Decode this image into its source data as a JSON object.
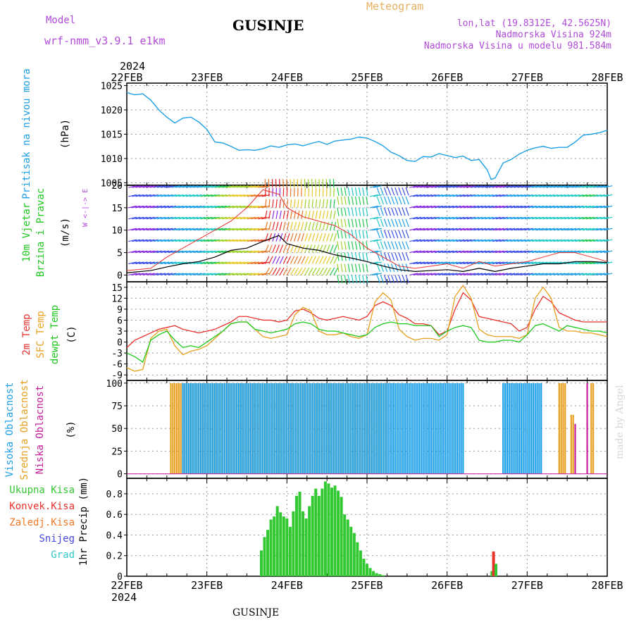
{
  "header": {
    "model_label": "Model",
    "model_name": "wrf-nmm_v3.9.1  e1km",
    "station_title": "GUSINJE",
    "meteogram_label": "Meteogram",
    "lonlat": "lon,lat (19.8312E, 42.5625N)",
    "elevation": "Nadmorska Visina 924m",
    "model_elevation": "Nadmorska Visina u modelu 981.584m",
    "year_top": "2024",
    "year_bottom": "2024",
    "footer_station": "GUSINJE",
    "credit": "made by Angel"
  },
  "colors": {
    "pressure": "#1ea0e6",
    "temp2m": "#e8322c",
    "sfctemp": "#e8a020",
    "dewpt": "#1ec81e",
    "cloud_high": "#1ea0e6",
    "cloud_mid": "#e8a020",
    "cloud_low": "#c81e9a",
    "precip_total": "#32c832",
    "precip_conv": "#e8322c",
    "precip_frz": "#f07828",
    "precip_snow": "#4646dc",
    "precip_hail": "#32c8c8",
    "label_purple": "#b04ad8"
  },
  "chart_data": [
    {
      "type": "line",
      "panel": "pressure",
      "ylabel": "Pritisak na nivou mora",
      "unit": "(hPa)",
      "x_ticks": [
        "22FEB",
        "23FEB",
        "24FEB",
        "25FEB",
        "26FEB",
        "27FEB",
        "28FEB"
      ],
      "ylim": [
        1004.5,
        1025.5
      ],
      "yticks": [
        1005,
        1010,
        1015,
        1020,
        1025
      ],
      "grid": true,
      "series": [
        {
          "color_key": "pressure",
          "x": [
            0,
            0.05,
            0.1,
            0.2,
            0.3,
            0.4,
            0.5,
            0.6,
            0.7,
            0.8,
            0.9,
            1.0,
            1.1,
            1.2,
            1.3,
            1.4,
            1.5,
            1.6,
            1.7,
            1.8,
            1.9,
            2.0,
            2.1,
            2.2,
            2.3,
            2.4,
            2.5,
            2.6,
            2.7,
            2.8,
            2.9,
            3.0,
            3.1,
            3.2,
            3.3,
            3.4,
            3.5,
            3.6,
            3.7,
            3.8,
            3.9,
            4.0,
            4.1,
            4.2,
            4.3,
            4.4,
            4.5,
            4.55,
            4.6,
            4.7,
            4.8,
            4.9,
            5.0,
            5.1,
            5.2,
            5.3,
            5.4,
            5.5,
            5.6,
            5.7,
            5.8,
            5.9,
            6.0
          ],
          "values": [
            1023.6,
            1023.3,
            1023.1,
            1023.3,
            1022.0,
            1020.0,
            1018.5,
            1017.3,
            1018.3,
            1018.5,
            1017.5,
            1016.0,
            1013.4,
            1013.2,
            1012.5,
            1011.7,
            1011.8,
            1011.7,
            1012.0,
            1012.6,
            1012.3,
            1012.8,
            1013.0,
            1012.6,
            1013.1,
            1013.5,
            1012.9,
            1013.6,
            1013.8,
            1014.0,
            1014.4,
            1014.2,
            1013.5,
            1012.6,
            1011.3,
            1010.6,
            1009.6,
            1009.4,
            1010.4,
            1010.3,
            1011.0,
            1010.6,
            1010.2,
            1010.5,
            1009.6,
            1009.8,
            1007.7,
            1005.7,
            1006.0,
            1009.1,
            1009.8,
            1010.9,
            1011.7,
            1012.2,
            1012.5,
            1012.1,
            1012.3,
            1012.3,
            1013.4,
            1014.8,
            1015.0,
            1015.3,
            1015.8
          ]
        }
      ]
    },
    {
      "type": "line",
      "panel": "wind",
      "ylabel": "10m Vjetar Brzina i Pravac",
      "unit": "(m/s)",
      "legend_glyph": "W <-|-> E  S<-|->N",
      "ylim": [
        -1.5,
        20
      ],
      "yticks": [
        0,
        5,
        10,
        15,
        20
      ],
      "grid": true,
      "series": [
        {
          "name": "speed",
          "x": [
            0,
            0.3,
            0.5,
            0.7,
            0.9,
            1.1,
            1.3,
            1.5,
            1.7,
            1.9,
            2.0,
            2.2,
            2.4,
            2.6,
            2.8,
            3.0,
            3.2,
            3.4,
            3.6,
            3.8,
            4.0,
            4.2,
            4.4,
            4.6,
            4.8,
            5.0,
            5.2,
            5.4,
            5.6,
            5.8,
            6.0
          ],
          "values": [
            0.5,
            1.0,
            1.8,
            2.5,
            3.0,
            4.0,
            5.5,
            6.0,
            7.5,
            8.8,
            7.0,
            6.0,
            5.5,
            4.5,
            3.8,
            3.0,
            2.0,
            1.2,
            0.8,
            1.0,
            1.2,
            0.8,
            1.5,
            0.8,
            1.5,
            2.0,
            2.5,
            2.5,
            3.0,
            3.0,
            2.8
          ]
        },
        {
          "name": "gust",
          "x": [
            0,
            0.3,
            0.5,
            0.7,
            0.9,
            1.1,
            1.3,
            1.5,
            1.7,
            1.9,
            2.0,
            2.2,
            2.4,
            2.6,
            2.8,
            3.0,
            3.2,
            3.4,
            3.6,
            3.8,
            4.0,
            4.2,
            4.4,
            4.6,
            4.8,
            5.0,
            5.2,
            5.4,
            5.6,
            5.8,
            6.0
          ],
          "values": [
            1,
            1.5,
            4,
            6,
            8,
            10,
            12,
            15,
            19,
            18,
            15,
            13,
            12,
            11,
            9,
            6,
            4,
            2,
            1.5,
            2,
            2.5,
            1.5,
            3,
            2,
            2.5,
            3,
            4,
            5,
            5,
            4,
            3
          ]
        }
      ]
    },
    {
      "type": "line",
      "panel": "temperature",
      "ylabel": [
        "2m Temp",
        "SFC Temp",
        "dewpt Temp"
      ],
      "unit": "(C)",
      "ylim": [
        -10.5,
        16.5
      ],
      "yticks": [
        -9,
        -6,
        -3,
        0,
        3,
        6,
        9,
        12,
        15
      ],
      "grid": true,
      "series": [
        {
          "color_key": "temp2m",
          "x": [
            0,
            0.1,
            0.2,
            0.3,
            0.4,
            0.5,
            0.6,
            0.7,
            0.8,
            0.9,
            1.0,
            1.1,
            1.2,
            1.3,
            1.4,
            1.5,
            1.6,
            1.7,
            1.8,
            1.9,
            2.0,
            2.1,
            2.2,
            2.3,
            2.4,
            2.5,
            2.6,
            2.7,
            2.8,
            2.9,
            3.0,
            3.1,
            3.2,
            3.3,
            3.4,
            3.5,
            3.6,
            3.7,
            3.8,
            3.9,
            4.0,
            4.1,
            4.2,
            4.3,
            4.4,
            4.5,
            4.6,
            4.7,
            4.8,
            4.9,
            5.0,
            5.1,
            5.2,
            5.3,
            5.4,
            5.5,
            5.6,
            5.7,
            5.8,
            5.9,
            6.0
          ],
          "values": [
            -1.5,
            0.5,
            1.5,
            2.5,
            3.5,
            4.0,
            4.5,
            3.5,
            3.0,
            2.5,
            3.0,
            3.5,
            4.5,
            5.5,
            7.0,
            7.0,
            6.5,
            6.0,
            6.0,
            5.5,
            6.0,
            8.5,
            9.0,
            8.0,
            6.5,
            6.0,
            6.5,
            7.0,
            6.5,
            6.0,
            7.0,
            10.0,
            11.0,
            10.0,
            7.5,
            6.5,
            5.0,
            5.0,
            4.5,
            2.0,
            3.0,
            9.0,
            13.5,
            11.5,
            7.0,
            6.5,
            6.0,
            5.5,
            5.0,
            3.0,
            4.0,
            9.0,
            12.5,
            11.0,
            8.0,
            7.0,
            6.0,
            5.5,
            5.5,
            5.5,
            5.5
          ]
        },
        {
          "color_key": "sfctemp",
          "x": [
            0,
            0.1,
            0.2,
            0.3,
            0.4,
            0.5,
            0.6,
            0.7,
            0.8,
            0.9,
            1.0,
            1.1,
            1.2,
            1.3,
            1.4,
            1.5,
            1.6,
            1.7,
            1.8,
            1.9,
            2.0,
            2.1,
            2.2,
            2.3,
            2.4,
            2.5,
            2.6,
            2.7,
            2.8,
            2.9,
            3.0,
            3.1,
            3.2,
            3.3,
            3.4,
            3.5,
            3.6,
            3.7,
            3.8,
            3.9,
            4.0,
            4.1,
            4.2,
            4.3,
            4.4,
            4.5,
            4.6,
            4.7,
            4.8,
            4.9,
            5.0,
            5.1,
            5.2,
            5.3,
            5.4,
            5.5,
            5.6,
            5.7,
            5.8,
            5.9,
            6.0
          ],
          "values": [
            -7.0,
            -8.0,
            -7.5,
            1.0,
            3.0,
            3.5,
            -1.0,
            -3.5,
            -2.5,
            -2.0,
            -1.0,
            1.0,
            3.0,
            5.0,
            5.5,
            5.5,
            3.5,
            1.5,
            1.0,
            1.5,
            2.0,
            7.5,
            9.5,
            8.5,
            3.0,
            2.0,
            2.0,
            2.5,
            1.5,
            1.0,
            2.0,
            11.0,
            13.5,
            11.5,
            3.5,
            1.5,
            0.5,
            1.0,
            1.0,
            0.5,
            2.0,
            12.5,
            15.5,
            12.0,
            3.5,
            2.0,
            1.5,
            1.5,
            1.5,
            1.0,
            2.0,
            12.0,
            15.0,
            12.0,
            4.0,
            3.0,
            3.0,
            2.5,
            2.5,
            2.0,
            1.5
          ]
        },
        {
          "color_key": "dewpt",
          "x": [
            0,
            0.1,
            0.2,
            0.3,
            0.4,
            0.5,
            0.6,
            0.7,
            0.8,
            0.9,
            1.0,
            1.1,
            1.2,
            1.3,
            1.4,
            1.5,
            1.6,
            1.7,
            1.8,
            1.9,
            2.0,
            2.1,
            2.2,
            2.3,
            2.4,
            2.5,
            2.6,
            2.7,
            2.8,
            2.9,
            3.0,
            3.1,
            3.2,
            3.3,
            3.4,
            3.5,
            3.6,
            3.7,
            3.8,
            3.9,
            4.0,
            4.1,
            4.2,
            4.3,
            4.4,
            4.5,
            4.6,
            4.7,
            4.8,
            4.9,
            5.0,
            5.1,
            5.2,
            5.3,
            5.4,
            5.5,
            5.6,
            5.7,
            5.8,
            5.9,
            6.0
          ],
          "values": [
            -3.0,
            -4.0,
            -5.5,
            0.5,
            2.0,
            3.0,
            0.5,
            -1.5,
            -1.0,
            -1.5,
            0.0,
            1.5,
            3.0,
            5.0,
            5.5,
            5.5,
            3.5,
            3.0,
            2.5,
            3.0,
            3.5,
            5.0,
            5.5,
            5.0,
            3.5,
            3.0,
            3.0,
            2.5,
            2.0,
            1.5,
            2.0,
            4.0,
            5.0,
            5.5,
            5.0,
            5.0,
            4.5,
            4.5,
            4.5,
            1.5,
            3.0,
            4.0,
            4.5,
            4.0,
            0.5,
            0.0,
            0.0,
            0.5,
            0.5,
            0.0,
            2.0,
            4.5,
            5.0,
            4.0,
            3.0,
            4.5,
            4.0,
            3.5,
            3.0,
            3.0,
            2.5
          ]
        }
      ]
    },
    {
      "type": "bar",
      "panel": "cloud",
      "ylabel": [
        "Visoka Oblacnost",
        "Srednja Oblacnost",
        "Niska Oblacnost"
      ],
      "unit": "(%)",
      "ylim": [
        -5,
        103
      ],
      "yticks": [
        0,
        25,
        50,
        75,
        100
      ],
      "grid": true,
      "segments": [
        {
          "color_key": "cloud_mid",
          "x_from": 0.55,
          "x_to": 3.25,
          "value": 100
        },
        {
          "color_key": "cloud_high",
          "x_from": 0.7,
          "x_to": 4.2,
          "value": 100
        },
        {
          "color_key": "cloud_high",
          "x_from": 4.7,
          "x_to": 5.2,
          "value": 100
        },
        {
          "color_key": "cloud_mid",
          "x_from": 5.4,
          "x_to": 5.5,
          "value": 100
        },
        {
          "color_key": "cloud_mid",
          "x_from": 5.55,
          "x_to": 5.58,
          "value": 65
        },
        {
          "color_key": "cloud_low",
          "x_from": 5.6,
          "x_to": 5.62,
          "value": 55
        },
        {
          "color_key": "cloud_low",
          "x_from": 5.75,
          "x_to": 5.77,
          "value": 100
        },
        {
          "color_key": "cloud_mid",
          "x_from": 5.8,
          "x_to": 5.85,
          "value": 100
        }
      ]
    },
    {
      "type": "bar",
      "panel": "precip",
      "ylabel": "1hr Precip",
      "unit": "(mm)",
      "legend": [
        "Ukupna Kisa",
        "Konvek.Kisa",
        "Zaledj.Kisa",
        "Snijeg",
        "Grad"
      ],
      "ylim": [
        0,
        0.95
      ],
      "yticks": [
        0,
        0.2,
        0.4,
        0.6,
        0.8
      ],
      "grid": true,
      "bars": [
        {
          "x": 1.68,
          "value": 0.25
        },
        {
          "x": 1.72,
          "value": 0.38
        },
        {
          "x": 1.76,
          "value": 0.45
        },
        {
          "x": 1.8,
          "value": 0.55
        },
        {
          "x": 1.84,
          "value": 0.58
        },
        {
          "x": 1.88,
          "value": 0.68
        },
        {
          "x": 1.92,
          "value": 0.62
        },
        {
          "x": 1.96,
          "value": 0.58
        },
        {
          "x": 2.0,
          "value": 0.56
        },
        {
          "x": 2.04,
          "value": 0.48
        },
        {
          "x": 2.08,
          "value": 0.63
        },
        {
          "x": 2.12,
          "value": 0.78
        },
        {
          "x": 2.16,
          "value": 0.82
        },
        {
          "x": 2.2,
          "value": 0.63
        },
        {
          "x": 2.24,
          "value": 0.56
        },
        {
          "x": 2.28,
          "value": 0.68
        },
        {
          "x": 2.32,
          "value": 0.78
        },
        {
          "x": 2.36,
          "value": 0.85
        },
        {
          "x": 2.4,
          "value": 0.78
        },
        {
          "x": 2.44,
          "value": 0.85
        },
        {
          "x": 2.48,
          "value": 0.92
        },
        {
          "x": 2.52,
          "value": 0.9
        },
        {
          "x": 2.56,
          "value": 0.86
        },
        {
          "x": 2.6,
          "value": 0.88
        },
        {
          "x": 2.64,
          "value": 0.83
        },
        {
          "x": 2.68,
          "value": 0.77
        },
        {
          "x": 2.72,
          "value": 0.6
        },
        {
          "x": 2.76,
          "value": 0.55
        },
        {
          "x": 2.8,
          "value": 0.48
        },
        {
          "x": 2.84,
          "value": 0.42
        },
        {
          "x": 2.88,
          "value": 0.33
        },
        {
          "x": 2.92,
          "value": 0.25
        },
        {
          "x": 2.96,
          "value": 0.17
        },
        {
          "x": 3.0,
          "value": 0.12
        },
        {
          "x": 3.04,
          "value": 0.08
        },
        {
          "x": 3.08,
          "value": 0.05
        },
        {
          "x": 3.12,
          "value": 0.03
        },
        {
          "x": 3.16,
          "value": 0.02
        },
        {
          "x": 3.2,
          "value": 0.01
        },
        {
          "x": 4.56,
          "value": 0.05
        },
        {
          "x": 4.58,
          "value": 0.24,
          "color_key": "precip_conv"
        },
        {
          "x": 4.61,
          "value": 0.12
        }
      ]
    }
  ]
}
